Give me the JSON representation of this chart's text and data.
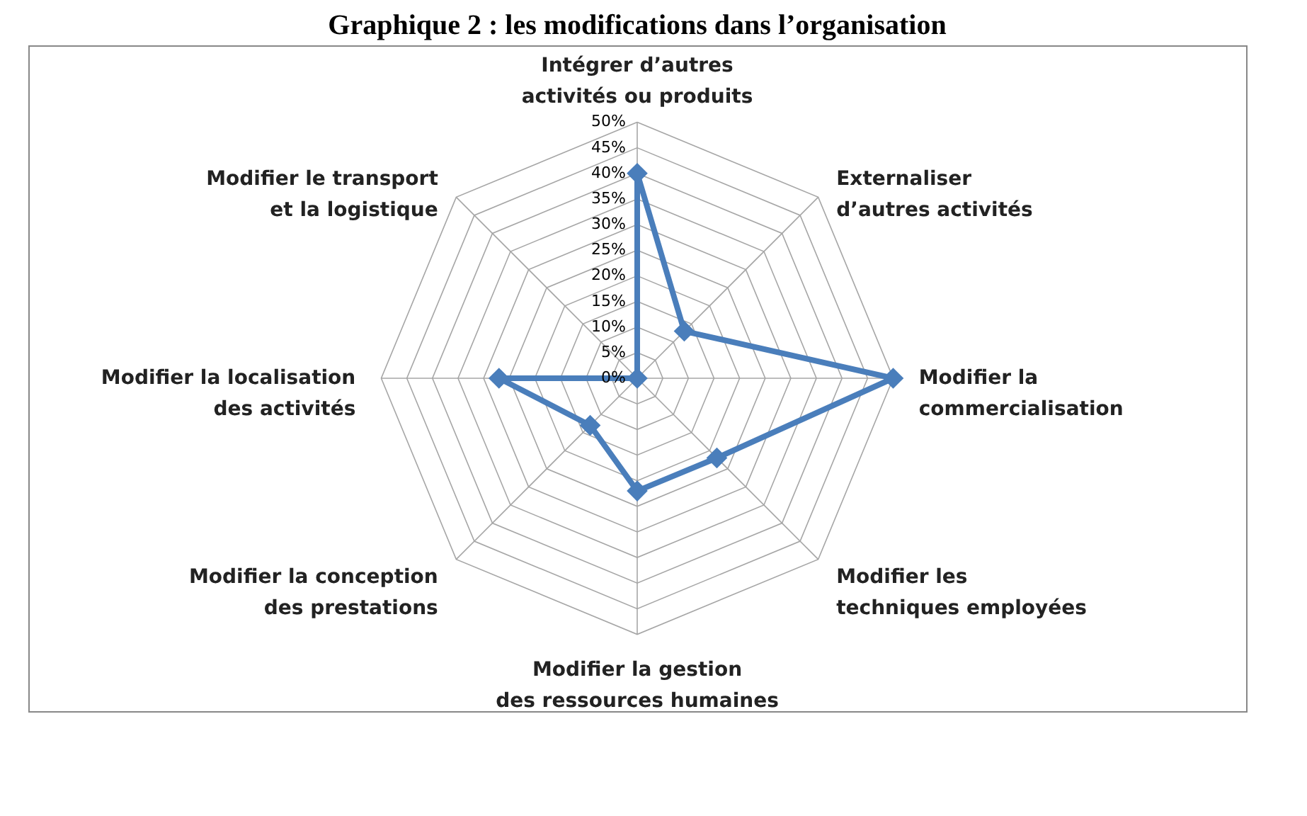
{
  "chart_data": {
    "type": "radar",
    "title": "Graphique 2 : les modifications dans l’organisation",
    "categories": [
      "Intégrer d’autres activités ou produits",
      "Externaliser d’autres activités",
      "Modifier la commercialisation",
      "Modifier les techniques employées",
      "Modifier la gestion des ressources humaines",
      "Modifier la conception des prestations",
      "Modifier la localisation des activités",
      "Modifier le transport et la logistique"
    ],
    "series": [
      {
        "color": "#4a7ebb",
        "values": [
          40,
          13,
          50,
          22,
          22,
          13,
          27,
          0
        ]
      }
    ],
    "ylim": [
      0,
      50
    ],
    "yticks": [
      {
        "value": 0,
        "label": "0%"
      },
      {
        "value": 5,
        "label": "5%"
      },
      {
        "value": 10,
        "label": "10%"
      },
      {
        "value": 15,
        "label": "15%"
      },
      {
        "value": 20,
        "label": "20%"
      },
      {
        "value": 25,
        "label": "25%"
      },
      {
        "value": 30,
        "label": "30%"
      },
      {
        "value": 35,
        "label": "35%"
      },
      {
        "value": 40,
        "label": "40%"
      },
      {
        "value": 45,
        "label": "45%"
      },
      {
        "value": 50,
        "label": "50%"
      }
    ],
    "grid": true,
    "marker": "diamond",
    "line_style": "solid"
  }
}
